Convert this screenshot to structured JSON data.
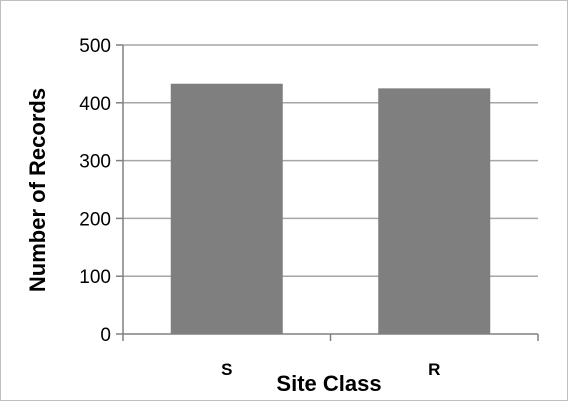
{
  "chart_data": {
    "type": "bar",
    "title": "",
    "xlabel": "Site Class",
    "ylabel": "Number of Records",
    "categories": [
      "S",
      "R"
    ],
    "values": [
      433,
      425
    ],
    "ylim": [
      0,
      500
    ],
    "yticks": [
      0,
      100,
      200,
      300,
      400,
      500
    ],
    "grid": true,
    "legend": "none",
    "bar_color": "#7f7f7f",
    "grid_color": "#a6a6a6"
  }
}
